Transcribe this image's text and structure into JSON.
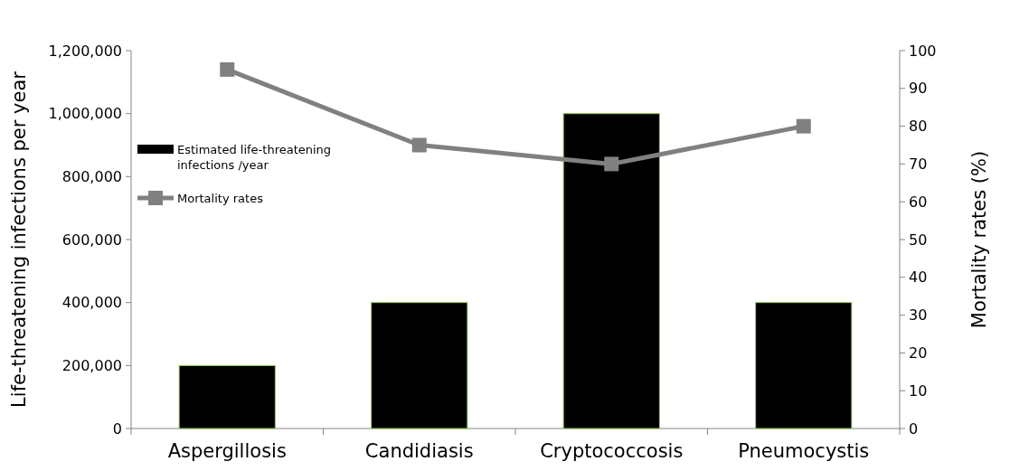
{
  "chart_data": {
    "type": "bar",
    "categories": [
      "Aspergillosis",
      "Candidiasis",
      "Cryptococcosis",
      "Pneumocystis"
    ],
    "ylabel": "Life-threatening infections per year",
    "y2label": "Mortality rates (%)",
    "series": [
      {
        "name": "Estimated life-threatening infections /year",
        "color": "#000000",
        "values": [
          200000,
          400000,
          1000000,
          400000
        ]
      },
      {
        "name": "Mortality rates",
        "type": "line",
        "axis": "y2",
        "color": "#808080",
        "marker": "square",
        "values": [
          95,
          75,
          70,
          80
        ]
      }
    ],
    "ylim": [
      0,
      1200000
    ],
    "yticks": [
      {
        "value": 0,
        "label": "0"
      },
      {
        "value": 200000,
        "label": "200,000"
      },
      {
        "value": 400000,
        "label": "400,000"
      },
      {
        "value": 600000,
        "label": "600,000"
      },
      {
        "value": 800000,
        "label": "800,000"
      },
      {
        "value": 1000000,
        "label": "1,000,000"
      },
      {
        "value": 1200000,
        "label": "1,200,000"
      }
    ],
    "y2lim": [
      0,
      100
    ],
    "y2ticks": [
      0,
      10,
      20,
      30,
      40,
      50,
      60,
      70,
      80,
      90,
      100
    ],
    "grid": false,
    "legend": "left"
  }
}
